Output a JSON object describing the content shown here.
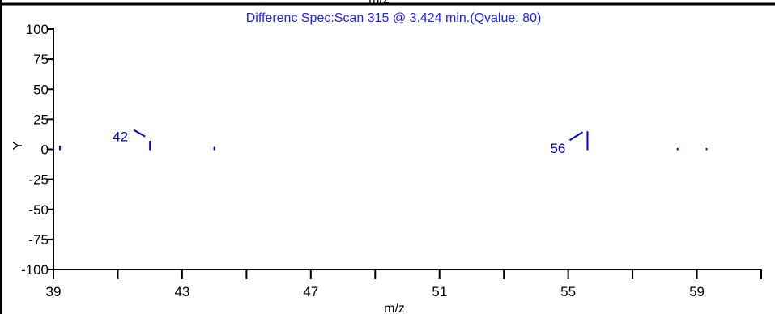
{
  "top_fragment_text": "m/z",
  "chart_data": {
    "type": "bar",
    "title": "Differenc Spec:Scan 315 @  3.424 min.(Qvalue: 80)",
    "xlabel": "m/z",
    "ylabel": "Y",
    "xlim": [
      39,
      61
    ],
    "ylim": [
      -100,
      100
    ],
    "x_ticks_major": [
      39,
      43,
      47,
      51,
      55,
      59
    ],
    "x_ticks_minor": [
      41,
      45,
      49,
      53,
      57,
      61
    ],
    "y_ticks": [
      100,
      75,
      50,
      25,
      0,
      -25,
      -50,
      -75,
      -100
    ],
    "peaks": [
      {
        "mz": 39.2,
        "y": 3
      },
      {
        "mz": 42.0,
        "y": 7
      },
      {
        "mz": 44.0,
        "y": 2
      },
      {
        "mz": 55.6,
        "y": 15
      },
      {
        "mz": 58.4,
        "y": 1
      },
      {
        "mz": 59.3,
        "y": 1
      }
    ],
    "annotations": [
      {
        "text": "42",
        "mz": 42.0,
        "y": 12
      },
      {
        "text": "56",
        "mz": 55.6,
        "y": 15
      }
    ],
    "colors": {
      "data": "#0000cc",
      "axis": "#000000",
      "frame": "#000000"
    }
  }
}
